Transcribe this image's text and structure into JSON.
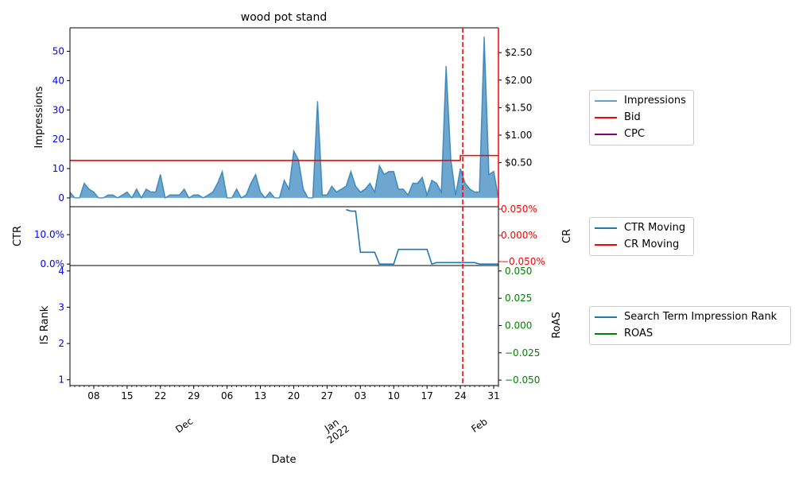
{
  "chart_data": {
    "type": "line",
    "title": "wood pot stand",
    "xlabel": "Date",
    "colors": {
      "impressions": "#1f77b4",
      "bid": "#ff0000",
      "cpc": "#800080",
      "ctr": "#1f77b4",
      "cr": "#ff0000",
      "rank": "#1f77b4",
      "roas": "#008000",
      "left_ticks": "#0000ff",
      "right_ticks_top": "#ff0000",
      "right_ticks_bottom": "#008000",
      "marker": "#ff0000"
    },
    "x_ticks": [
      {
        "day": 5,
        "label": "08"
      },
      {
        "day": 12,
        "label": "15"
      },
      {
        "day": 19,
        "label": "22"
      },
      {
        "day": 26,
        "label": "29"
      },
      {
        "day": 33,
        "label": "06"
      },
      {
        "day": 40,
        "label": "13"
      },
      {
        "day": 47,
        "label": "20"
      },
      {
        "day": 54,
        "label": "27"
      },
      {
        "day": 61,
        "label": "03"
      },
      {
        "day": 68,
        "label": "10"
      },
      {
        "day": 75,
        "label": "17"
      },
      {
        "day": 82,
        "label": "24"
      },
      {
        "day": 89,
        "label": "31"
      }
    ],
    "month_labels": [
      {
        "day": 24,
        "label": "Dec"
      },
      {
        "day": 55,
        "label": "Jan\n2022"
      },
      {
        "day": 86,
        "label": "Feb"
      }
    ],
    "x_range": [
      0,
      90
    ],
    "event_marker_day": 82.5,
    "top_panel": {
      "ylabel": "Impressions",
      "ylim": [
        -3,
        58
      ],
      "yticks": [
        0,
        10,
        20,
        30,
        40,
        50
      ],
      "right_ylim": [
        -0.3,
        2.95
      ],
      "right_yticks": [
        {
          "value": 0.5,
          "label": "$0.50"
        },
        {
          "value": 1.0,
          "label": "$1.00"
        },
        {
          "value": 1.5,
          "label": "$1.50"
        },
        {
          "value": 2.0,
          "label": "$2.00"
        },
        {
          "value": 2.5,
          "label": "$2.50"
        }
      ],
      "impressions": [
        2,
        0,
        0,
        5,
        3,
        2,
        0,
        0,
        1,
        1,
        0,
        1,
        2,
        0,
        3,
        0,
        3,
        2,
        2,
        8,
        0,
        1,
        1,
        1,
        3,
        0,
        1,
        1,
        0,
        1,
        2,
        5,
        9,
        0,
        0,
        3,
        0,
        1,
        5,
        8,
        2,
        0,
        2,
        0,
        0,
        6,
        3,
        16,
        13,
        3,
        0,
        0,
        33,
        1,
        1,
        4,
        2,
        3,
        4,
        9,
        4,
        2,
        3,
        5,
        2,
        11,
        8,
        9,
        9,
        3,
        3,
        1,
        5,
        5,
        7,
        1,
        6,
        5,
        2,
        45,
        13,
        1,
        10,
        5,
        3,
        2,
        2,
        55,
        8,
        9,
        0
      ],
      "bid": [
        {
          "day": 0,
          "value": 0.54
        },
        {
          "day": 82,
          "value": 0.54
        },
        {
          "day": 82,
          "value": 0.63
        },
        {
          "day": 90,
          "value": 0.63
        }
      ],
      "cpc": []
    },
    "middle_panel": {
      "ylabel": "CTR",
      "right_ylabel": "CR",
      "ylim": [
        -0.5,
        19.5
      ],
      "yticks": [
        {
          "value": 0,
          "label": "0.0%"
        },
        {
          "value": 10,
          "label": "10.0%"
        }
      ],
      "right_yticks": [
        {
          "value": -0.05,
          "label": "−0.050%"
        },
        {
          "value": 0,
          "label": "0.000%"
        },
        {
          "value": 0.05,
          "label": "0.050%"
        }
      ],
      "ctr_moving": [
        {
          "day": 58,
          "value": 18.5
        },
        {
          "day": 59,
          "value": 18
        },
        {
          "day": 60,
          "value": 18
        },
        {
          "day": 61,
          "value": 4
        },
        {
          "day": 64,
          "value": 4
        },
        {
          "day": 65,
          "value": 0
        },
        {
          "day": 68,
          "value": 0
        },
        {
          "day": 69,
          "value": 5
        },
        {
          "day": 75,
          "value": 5
        },
        {
          "day": 76,
          "value": 0
        },
        {
          "day": 77,
          "value": 0.5
        },
        {
          "day": 85,
          "value": 0.5
        },
        {
          "day": 86,
          "value": 0
        },
        {
          "day": 90,
          "value": 0
        }
      ],
      "cr_moving": []
    },
    "bottom_panel": {
      "ylabel": "IS Rank",
      "right_ylabel": "RoAS",
      "ylim": [
        0.84,
        4.15
      ],
      "yticks": [
        1,
        2,
        3,
        4
      ],
      "right_ylim": [
        -0.055,
        0.055
      ],
      "right_yticks": [
        {
          "value": -0.05,
          "label": "−0.050"
        },
        {
          "value": -0.025,
          "label": "−0.025"
        },
        {
          "value": 0,
          "label": "0.000"
        },
        {
          "value": 0.025,
          "label": "0.025"
        },
        {
          "value": 0.05,
          "label": "0.050"
        }
      ],
      "rank": [],
      "roas": []
    },
    "legends": {
      "top": [
        "Impressions",
        "Bid",
        "CPC"
      ],
      "middle": [
        "CTR Moving",
        "CR Moving"
      ],
      "bottom": [
        "Search Term Impression Rank",
        "ROAS"
      ]
    }
  }
}
